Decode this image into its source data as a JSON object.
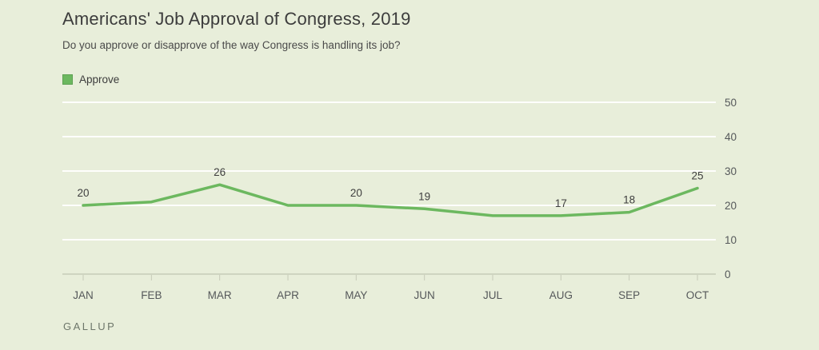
{
  "header": {
    "title": "Americans' Job Approval of Congress, 2019",
    "subtitle": "Do you approve or disapprove of the way Congress is handling its job?"
  },
  "legend": {
    "approve_label": "Approve",
    "approve_color": "#6cb85f"
  },
  "footer": {
    "source": "GALLUP"
  },
  "colors": {
    "background": "#e8eeda",
    "line_green": "#6cb85f",
    "gridline": "rgba(255,255,255,0.92)",
    "axis_line": "#c6cbb8",
    "axis_text": "#55585a",
    "title_text": "#3c3c3c"
  },
  "chart_data": {
    "type": "line",
    "title": "Americans' Job Approval of Congress, 2019",
    "subtitle": "Do you approve or disapprove of the way Congress is handling its job?",
    "categories": [
      "JAN",
      "FEB",
      "MAR",
      "APR",
      "MAY",
      "JUN",
      "JUL",
      "AUG",
      "SEP",
      "OCT"
    ],
    "series": [
      {
        "name": "Approve",
        "values": [
          20,
          21,
          26,
          20,
          20,
          19,
          17,
          17,
          18,
          25
        ],
        "color": "#6cb85f"
      }
    ],
    "point_labels": [
      20,
      null,
      26,
      null,
      20,
      19,
      null,
      17,
      18,
      25
    ],
    "yticks": [
      0,
      10,
      20,
      30,
      40,
      50
    ],
    "ylim": [
      0,
      50
    ],
    "xlabel": "",
    "ylabel": "",
    "grid": "horizontal",
    "legend_position": "top-left",
    "value_axis_side": "right",
    "source": "GALLUP"
  }
}
